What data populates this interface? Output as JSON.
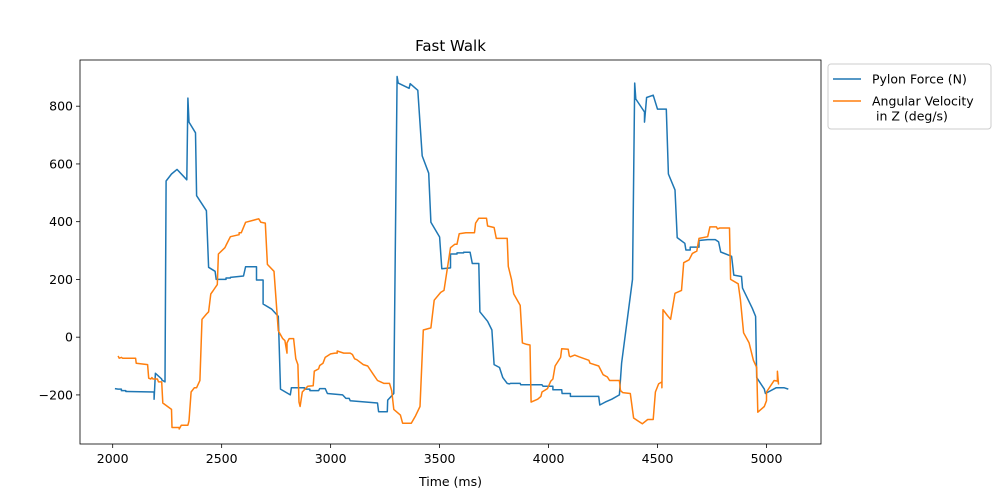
{
  "chart_data": {
    "type": "line",
    "title": "Fast Walk",
    "xlabel": "Time (ms)",
    "ylabel": "",
    "xlim": [
      1850,
      5250
    ],
    "ylim": [
      -370,
      960
    ],
    "xticks": [
      2000,
      2500,
      3000,
      3500,
      4000,
      4500,
      5000
    ],
    "yticks": [
      -200,
      0,
      200,
      400,
      600,
      800
    ],
    "grid": false,
    "legend_position": "outside-top-right",
    "series": [
      {
        "name": "Pylon Force (N)",
        "color": "#1f77b4",
        "points": [
          [
            2010,
            -178
          ],
          [
            2025,
            -180
          ],
          [
            2040,
            -180
          ],
          [
            2040,
            -185
          ],
          [
            2060,
            -185
          ],
          [
            2060,
            -188
          ],
          [
            2190,
            -190
          ],
          [
            2190,
            -215
          ],
          [
            2196,
            -125
          ],
          [
            2225,
            -145
          ],
          [
            2225,
            -148
          ],
          [
            2240,
            -155
          ],
          [
            2245,
            541
          ],
          [
            2270,
            565
          ],
          [
            2295,
            581
          ],
          [
            2340,
            545
          ],
          [
            2345,
            828
          ],
          [
            2350,
            745
          ],
          [
            2380,
            708
          ],
          [
            2385,
            490
          ],
          [
            2430,
            438
          ],
          [
            2440,
            242
          ],
          [
            2470,
            228
          ],
          [
            2475,
            200
          ],
          [
            2520,
            200
          ],
          [
            2520,
            205
          ],
          [
            2540,
            205
          ],
          [
            2540,
            207
          ],
          [
            2600,
            212
          ],
          [
            2610,
            244
          ],
          [
            2660,
            244
          ],
          [
            2660,
            198
          ],
          [
            2690,
            198
          ],
          [
            2690,
            115
          ],
          [
            2730,
            97
          ],
          [
            2760,
            72
          ],
          [
            2770,
            -180
          ],
          [
            2815,
            -200
          ],
          [
            2820,
            -175
          ],
          [
            2880,
            -175
          ],
          [
            2880,
            -180
          ],
          [
            2905,
            -180
          ],
          [
            2905,
            -185
          ],
          [
            2945,
            -185
          ],
          [
            2950,
            -178
          ],
          [
            2975,
            -178
          ],
          [
            2985,
            -195
          ],
          [
            3055,
            -200
          ],
          [
            3070,
            -212
          ],
          [
            3085,
            -212
          ],
          [
            3090,
            -220
          ],
          [
            3215,
            -228
          ],
          [
            3220,
            -258
          ],
          [
            3260,
            -258
          ],
          [
            3262,
            -218
          ],
          [
            3290,
            -195
          ],
          [
            3305,
            903
          ],
          [
            3310,
            880
          ],
          [
            3360,
            862
          ],
          [
            3365,
            878
          ],
          [
            3400,
            855
          ],
          [
            3420,
            628
          ],
          [
            3450,
            568
          ],
          [
            3460,
            398
          ],
          [
            3500,
            347
          ],
          [
            3510,
            237
          ],
          [
            3550,
            240
          ],
          [
            3550,
            288
          ],
          [
            3580,
            288
          ],
          [
            3580,
            292
          ],
          [
            3610,
            292
          ],
          [
            3610,
            294
          ],
          [
            3640,
            294
          ],
          [
            3650,
            255
          ],
          [
            3680,
            255
          ],
          [
            3685,
            88
          ],
          [
            3720,
            55
          ],
          [
            3740,
            25
          ],
          [
            3750,
            -95
          ],
          [
            3775,
            -105
          ],
          [
            3790,
            -140
          ],
          [
            3810,
            -160
          ],
          [
            3820,
            -162
          ],
          [
            3825,
            -160
          ],
          [
            3870,
            -160
          ],
          [
            3872,
            -165
          ],
          [
            3970,
            -165
          ],
          [
            3975,
            -170
          ],
          [
            4020,
            -170
          ],
          [
            4020,
            -182
          ],
          [
            4060,
            -182
          ],
          [
            4062,
            -195
          ],
          [
            4100,
            -195
          ],
          [
            4100,
            -205
          ],
          [
            4230,
            -205
          ],
          [
            4235,
            -235
          ],
          [
            4260,
            -225
          ],
          [
            4290,
            -215
          ],
          [
            4325,
            -200
          ],
          [
            4335,
            -90
          ],
          [
            4385,
            200
          ],
          [
            4395,
            880
          ],
          [
            4400,
            825
          ],
          [
            4440,
            780
          ],
          [
            4440,
            745
          ],
          [
            4450,
            830
          ],
          [
            4480,
            838
          ],
          [
            4500,
            790
          ],
          [
            4540,
            790
          ],
          [
            4550,
            565
          ],
          [
            4580,
            510
          ],
          [
            4590,
            345
          ],
          [
            4625,
            325
          ],
          [
            4630,
            302
          ],
          [
            4650,
            302
          ],
          [
            4650,
            312
          ],
          [
            4690,
            312
          ],
          [
            4690,
            335
          ],
          [
            4730,
            338
          ],
          [
            4765,
            338
          ],
          [
            4780,
            330
          ],
          [
            4790,
            295
          ],
          [
            4840,
            280
          ],
          [
            4850,
            215
          ],
          [
            4885,
            210
          ],
          [
            4890,
            170
          ],
          [
            4935,
            100
          ],
          [
            4950,
            72
          ],
          [
            4955,
            -140
          ],
          [
            4990,
            -180
          ],
          [
            4995,
            -195
          ],
          [
            5045,
            -175
          ],
          [
            5080,
            -175
          ],
          [
            5100,
            -180
          ]
        ]
      },
      {
        "name": "Angular Velocity\n in Z (deg/s)",
        "color": "#ff7f0e",
        "points": [
          [
            2025,
            -65
          ],
          [
            2030,
            -73
          ],
          [
            2040,
            -70
          ],
          [
            2045,
            -73
          ],
          [
            2105,
            -73
          ],
          [
            2108,
            -90
          ],
          [
            2160,
            -95
          ],
          [
            2165,
            -142
          ],
          [
            2175,
            -145
          ],
          [
            2180,
            -140
          ],
          [
            2185,
            -145
          ],
          [
            2205,
            -145
          ],
          [
            2210,
            -155
          ],
          [
            2225,
            -155
          ],
          [
            2230,
            -228
          ],
          [
            2270,
            -250
          ],
          [
            2272,
            -313
          ],
          [
            2305,
            -313
          ],
          [
            2305,
            -318
          ],
          [
            2315,
            -305
          ],
          [
            2345,
            -305
          ],
          [
            2350,
            -290
          ],
          [
            2360,
            -190
          ],
          [
            2375,
            -175
          ],
          [
            2385,
            -175
          ],
          [
            2400,
            -150
          ],
          [
            2410,
            62
          ],
          [
            2430,
            80
          ],
          [
            2440,
            88
          ],
          [
            2450,
            150
          ],
          [
            2460,
            160
          ],
          [
            2480,
            182
          ],
          [
            2485,
            288
          ],
          [
            2515,
            310
          ],
          [
            2520,
            318
          ],
          [
            2540,
            348
          ],
          [
            2580,
            355
          ],
          [
            2580,
            362
          ],
          [
            2590,
            362
          ],
          [
            2610,
            398
          ],
          [
            2660,
            408
          ],
          [
            2670,
            410
          ],
          [
            2680,
            398
          ],
          [
            2700,
            395
          ],
          [
            2710,
            252
          ],
          [
            2740,
            228
          ],
          [
            2760,
            22
          ],
          [
            2780,
            -5
          ],
          [
            2790,
            -12
          ],
          [
            2800,
            -55
          ],
          [
            2800,
            -20
          ],
          [
            2810,
            -5
          ],
          [
            2830,
            -5
          ],
          [
            2840,
            -75
          ],
          [
            2850,
            -95
          ],
          [
            2855,
            -225
          ],
          [
            2860,
            -240
          ],
          [
            2870,
            -190
          ],
          [
            2895,
            -170
          ],
          [
            2920,
            -168
          ],
          [
            2925,
            -118
          ],
          [
            2945,
            -110
          ],
          [
            2950,
            -98
          ],
          [
            2965,
            -90
          ],
          [
            2975,
            -70
          ],
          [
            3000,
            -58
          ],
          [
            3020,
            -55
          ],
          [
            3030,
            -55
          ],
          [
            3030,
            -48
          ],
          [
            3060,
            -55
          ],
          [
            3090,
            -55
          ],
          [
            3100,
            -60
          ],
          [
            3110,
            -75
          ],
          [
            3120,
            -78
          ],
          [
            3150,
            -95
          ],
          [
            3170,
            -100
          ],
          [
            3195,
            -128
          ],
          [
            3215,
            -150
          ],
          [
            3245,
            -160
          ],
          [
            3270,
            -160
          ],
          [
            3280,
            -185
          ],
          [
            3290,
            -250
          ],
          [
            3320,
            -270
          ],
          [
            3330,
            -298
          ],
          [
            3370,
            -298
          ],
          [
            3390,
            -272
          ],
          [
            3410,
            -240
          ],
          [
            3425,
            25
          ],
          [
            3450,
            30
          ],
          [
            3460,
            32
          ],
          [
            3475,
            128
          ],
          [
            3505,
            155
          ],
          [
            3520,
            162
          ],
          [
            3550,
            310
          ],
          [
            3570,
            322
          ],
          [
            3580,
            322
          ],
          [
            3590,
            358
          ],
          [
            3620,
            362
          ],
          [
            3660,
            362
          ],
          [
            3665,
            395
          ],
          [
            3680,
            412
          ],
          [
            3715,
            412
          ],
          [
            3720,
            385
          ],
          [
            3750,
            380
          ],
          [
            3760,
            342
          ],
          [
            3810,
            342
          ],
          [
            3815,
            245
          ],
          [
            3830,
            200
          ],
          [
            3840,
            150
          ],
          [
            3870,
            110
          ],
          [
            3880,
            -20
          ],
          [
            3900,
            -25
          ],
          [
            3915,
            -27
          ],
          [
            3920,
            -225
          ],
          [
            3950,
            -215
          ],
          [
            3965,
            -205
          ],
          [
            3970,
            -190
          ],
          [
            3995,
            -178
          ],
          [
            4010,
            -152
          ],
          [
            4020,
            -145
          ],
          [
            4030,
            -100
          ],
          [
            4055,
            -70
          ],
          [
            4060,
            -40
          ],
          [
            4090,
            -42
          ],
          [
            4095,
            -65
          ],
          [
            4100,
            -68
          ],
          [
            4120,
            -62
          ],
          [
            4140,
            -68
          ],
          [
            4185,
            -80
          ],
          [
            4190,
            -90
          ],
          [
            4230,
            -100
          ],
          [
            4250,
            -130
          ],
          [
            4270,
            -138
          ],
          [
            4280,
            -150
          ],
          [
            4325,
            -150
          ],
          [
            4330,
            -185
          ],
          [
            4340,
            -192
          ],
          [
            4375,
            -195
          ],
          [
            4390,
            -280
          ],
          [
            4410,
            -290
          ],
          [
            4430,
            -300
          ],
          [
            4455,
            -285
          ],
          [
            4480,
            -285
          ],
          [
            4490,
            -190
          ],
          [
            4505,
            -162
          ],
          [
            4520,
            -155
          ],
          [
            4520,
            -175
          ],
          [
            4525,
            95
          ],
          [
            4545,
            75
          ],
          [
            4560,
            62
          ],
          [
            4580,
            152
          ],
          [
            4610,
            162
          ],
          [
            4620,
            258
          ],
          [
            4645,
            268
          ],
          [
            4660,
            290
          ],
          [
            4680,
            298
          ],
          [
            4690,
            342
          ],
          [
            4730,
            348
          ],
          [
            4740,
            382
          ],
          [
            4770,
            382
          ],
          [
            4775,
            375
          ],
          [
            4785,
            378
          ],
          [
            4830,
            378
          ],
          [
            4835,
            200
          ],
          [
            4870,
            185
          ],
          [
            4880,
            130
          ],
          [
            4895,
            15
          ],
          [
            4920,
            -20
          ],
          [
            4940,
            -80
          ],
          [
            4955,
            -105
          ],
          [
            4960,
            -260
          ],
          [
            4990,
            -240
          ],
          [
            5000,
            -220
          ],
          [
            5000,
            -190
          ],
          [
            5035,
            -150
          ],
          [
            5050,
            -152
          ],
          [
            5050,
            -118
          ],
          [
            5055,
            -162
          ],
          [
            5050,
            -140
          ]
        ]
      }
    ]
  }
}
